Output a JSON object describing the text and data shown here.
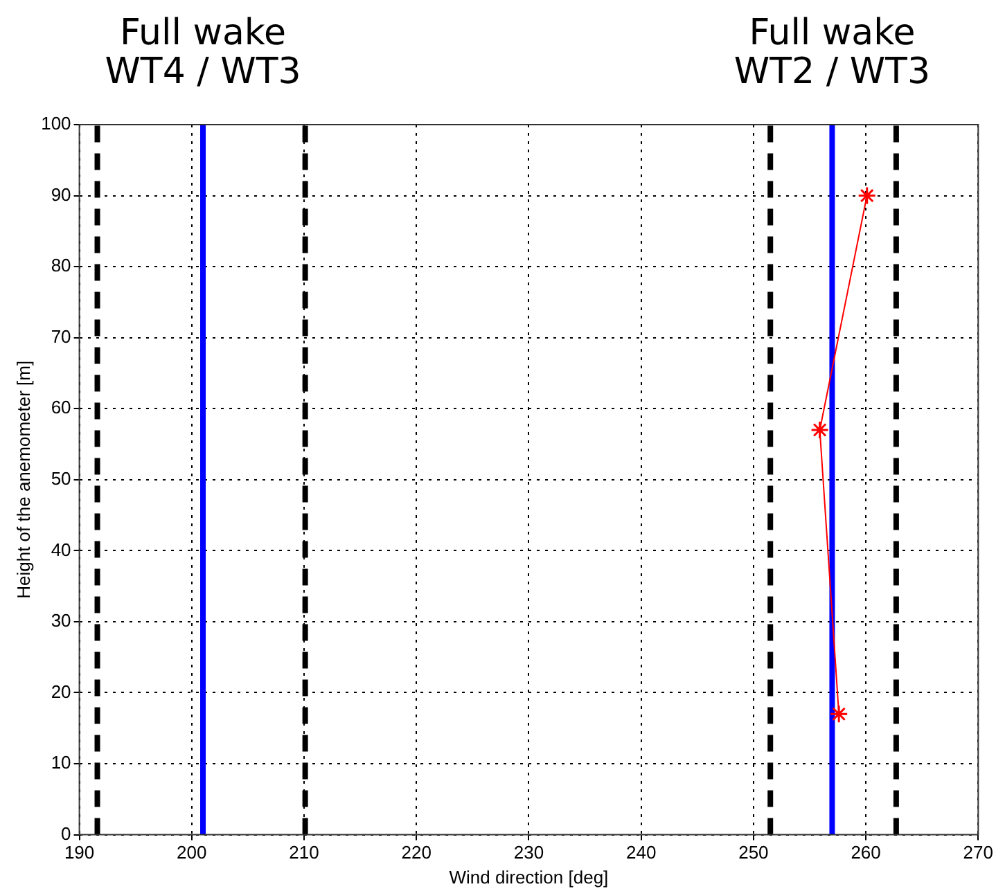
{
  "chart_data": {
    "type": "line",
    "xlabel": "Wind direction [deg]",
    "ylabel": "Height of the anemometer [m]",
    "series": [
      {
        "color": "#ff0000",
        "x": [
          257.6,
          255.9,
          260.1
        ],
        "values": [
          17,
          57,
          90
        ]
      }
    ],
    "xlim": [
      190,
      270
    ],
    "xticks": [
      190,
      200,
      210,
      220,
      230,
      240,
      250,
      260,
      270
    ],
    "ylim": [
      0,
      100
    ],
    "yticks": [
      0,
      10,
      20,
      30,
      40,
      50,
      60,
      70,
      80,
      90,
      100
    ],
    "grid": true,
    "legend": false,
    "marker": "cross",
    "line_style": "solid",
    "ref_lines": [
      {
        "axis": "x",
        "value": 191.6,
        "color": "#000000",
        "line_style": "dashed"
      },
      {
        "axis": "x",
        "value": 201,
        "color": "#0000ff",
        "line_style": "solid",
        "label": "Full wake\nWT4 / WT3"
      },
      {
        "axis": "x",
        "value": 210.1,
        "color": "#000000",
        "line_style": "dashed"
      },
      {
        "axis": "x",
        "value": 251.5,
        "color": "#000000",
        "line_style": "dashed"
      },
      {
        "axis": "x",
        "value": 257,
        "color": "#0000ff",
        "line_style": "solid",
        "label": "Full wake\nWT2 / WT3"
      },
      {
        "axis": "x",
        "value": 262.7,
        "color": "#000000",
        "line_style": "dashed"
      }
    ]
  }
}
